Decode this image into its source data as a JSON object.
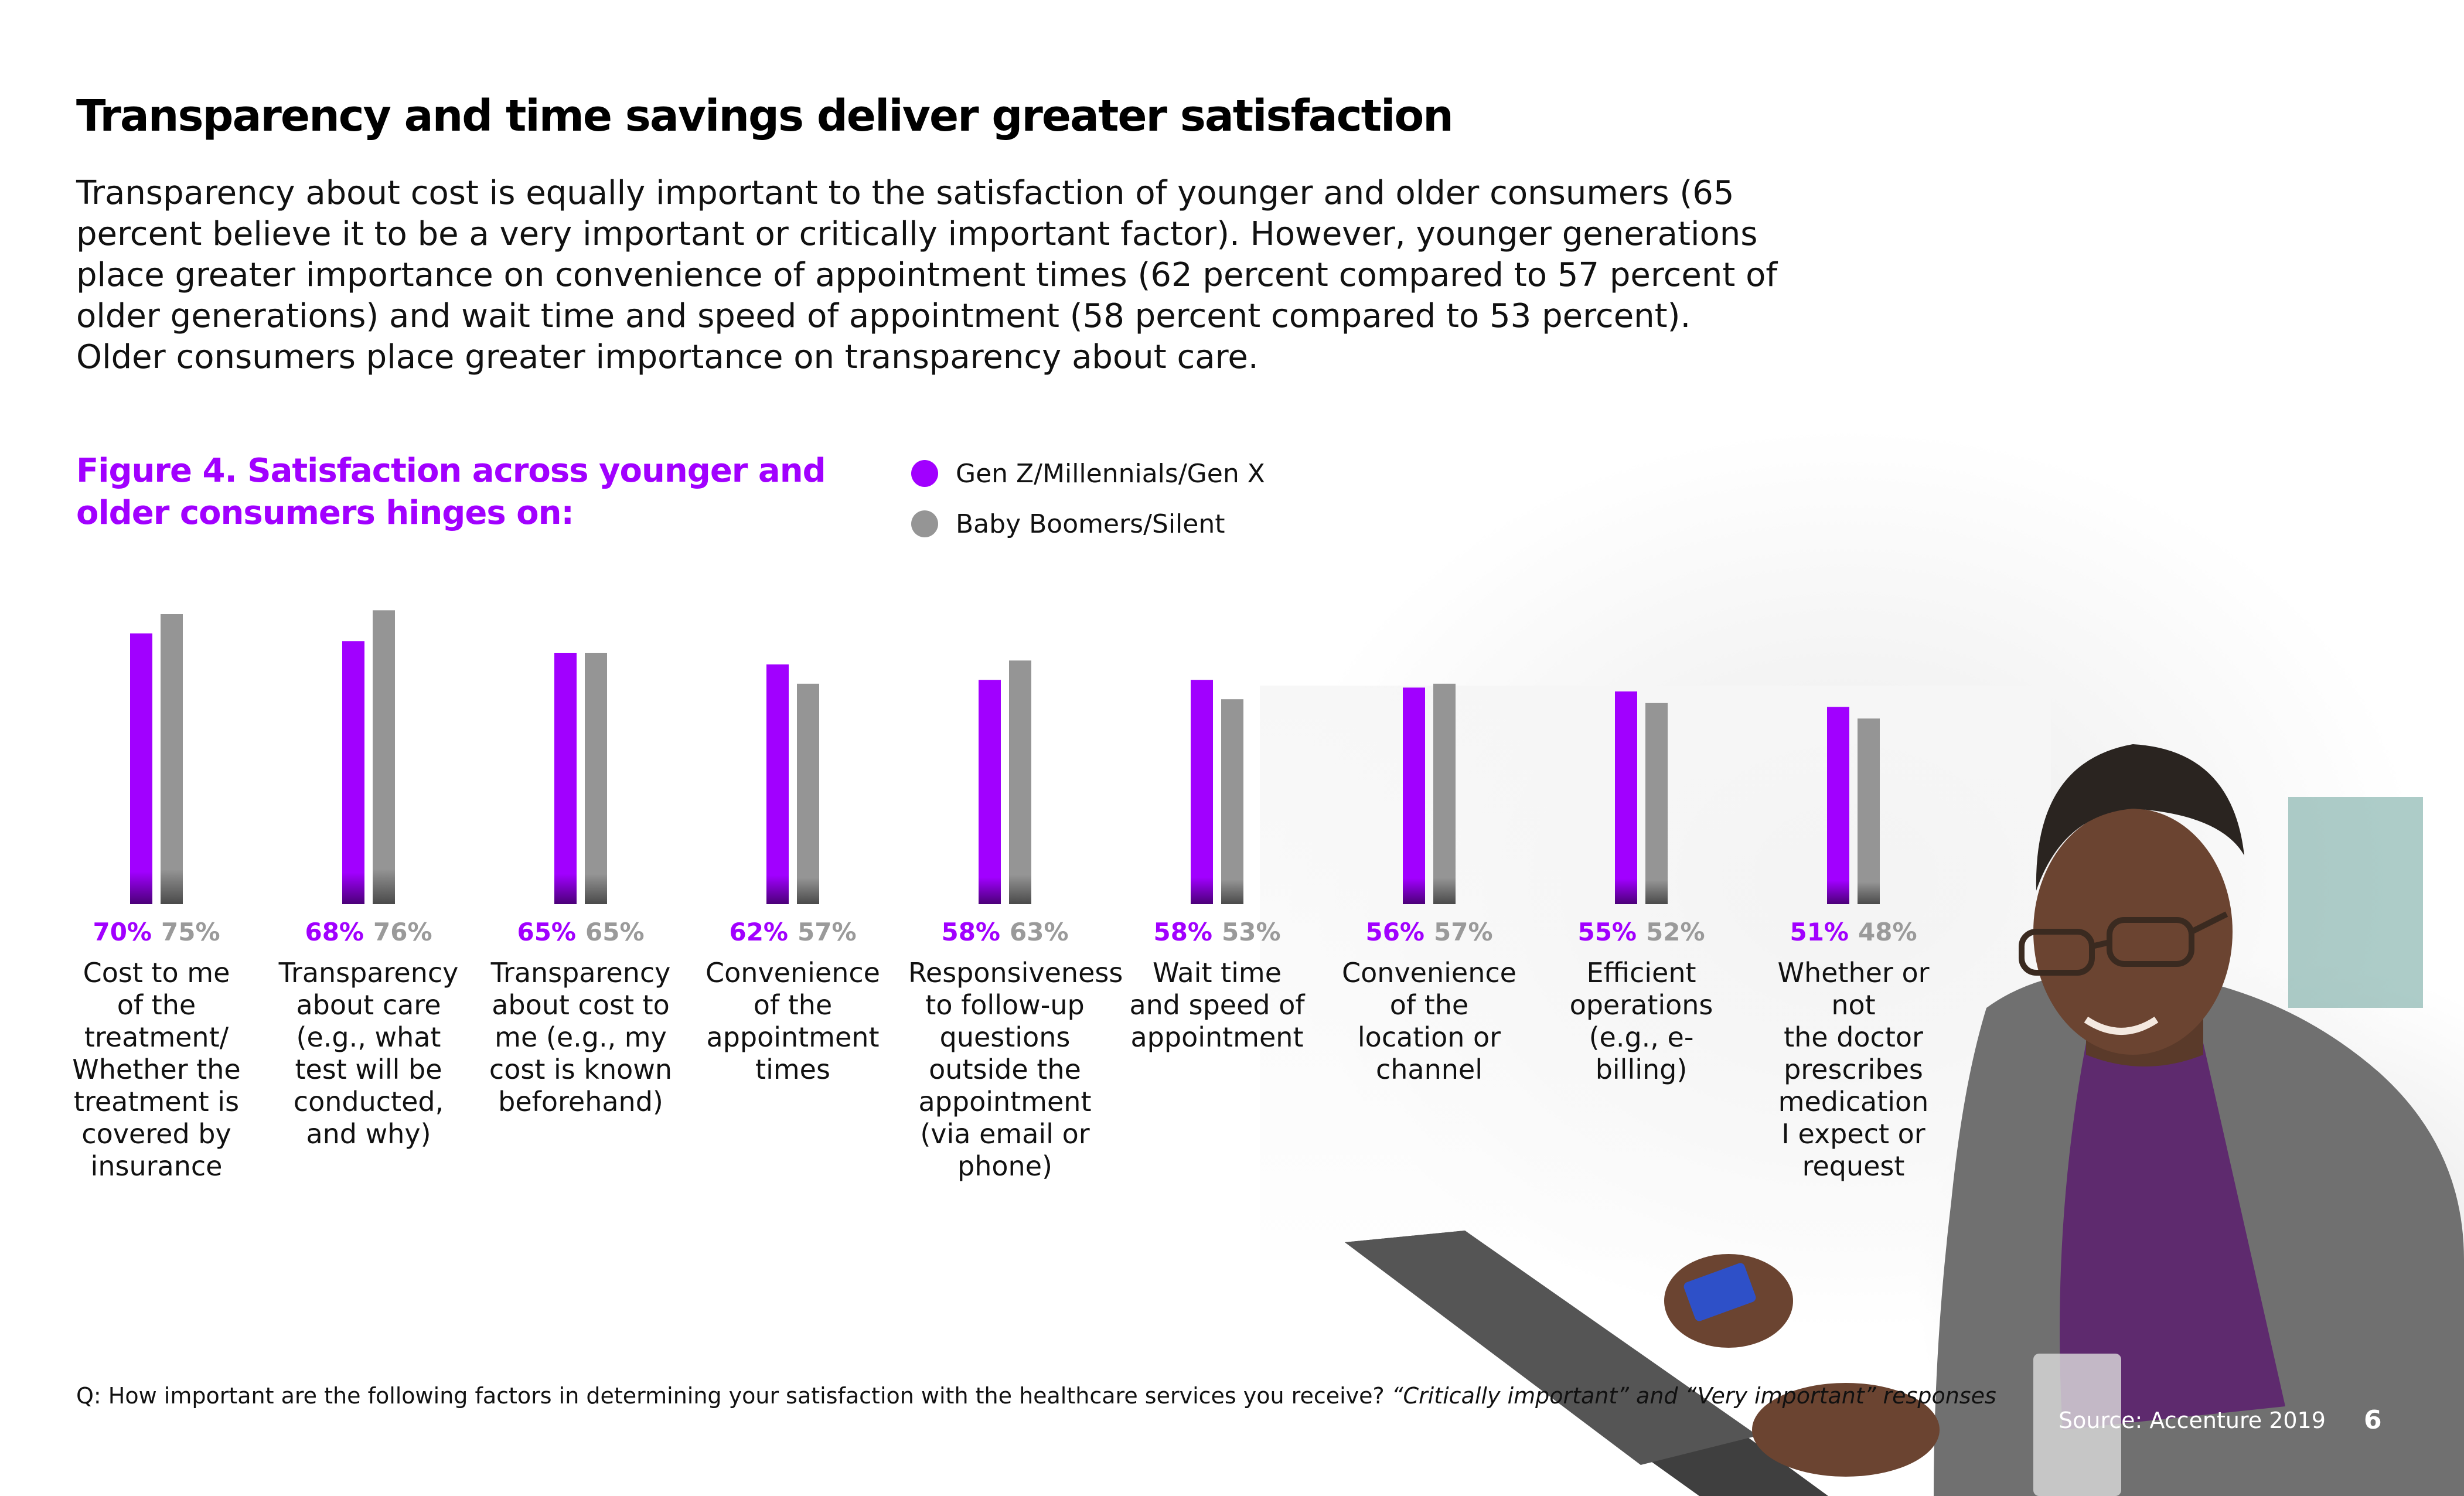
{
  "header": {
    "title": "Transparency and time savings deliver greater satisfaction",
    "intro": "Transparency about cost is equally important to the satisfaction of younger and older consumers (65 percent believe it to be a very important or critically important factor). However, younger generations place greater importance on convenience of appointment times (62 percent compared to 57 percent of older generations) and wait time and speed of appointment (58 percent compared to 53 percent). Older consumers place greater importance on transparency about care."
  },
  "figure": {
    "title": "Figure 4. Satisfaction across younger and older consumers hinges on:"
  },
  "colors": {
    "accent": "#a100ff",
    "younger": "#a100ff",
    "older": "#959595"
  },
  "chart_data": {
    "type": "bar",
    "title": "Figure 4. Satisfaction across younger and older consumers hinges on:",
    "xlabel": "",
    "ylabel": "",
    "ylim": [
      0,
      100
    ],
    "grid": false,
    "legend_position": "top",
    "categories": [
      "Cost to me\nof the\ntreatment/\nWhether the\ntreatment is\ncovered by\ninsurance",
      "Transparency\nabout care\n(e.g., what\ntest will be\nconducted,\nand why)",
      "Transparency\nabout cost to\nme (e.g., my\ncost is known\nbeforehand)",
      "Convenience\nof the\nappointment\ntimes",
      "Responsiveness\nto follow-up\nquestions\noutside the\nappointment\n(via email or\nphone)",
      "Wait time\nand speed of\nappointment",
      "Convenience\nof the\nlocation or\nchannel",
      "Efficient\noperations\n(e.g., e-billing)",
      "Whether or not\nthe doctor\nprescribes\nmedication\nI expect or\nrequest"
    ],
    "series": [
      {
        "name": "Gen Z/Millennials/Gen X",
        "color": "#a100ff",
        "values": [
          70,
          68,
          65,
          62,
          58,
          58,
          56,
          55,
          51
        ],
        "labels": [
          "70%",
          "68%",
          "65%",
          "62%",
          "58%",
          "58%",
          "56%",
          "55%",
          "51%"
        ]
      },
      {
        "name": "Baby Boomers/Silent",
        "color": "#959595",
        "values": [
          75,
          76,
          65,
          57,
          63,
          53,
          57,
          52,
          48
        ],
        "labels": [
          "75%",
          "76%",
          "65%",
          "57%",
          "63%",
          "53%",
          "57%",
          "52%",
          "48%"
        ]
      }
    ]
  },
  "footnote": {
    "question": "Q: How important are the following factors in determining your satisfaction with the healthcare services you receive?",
    "responses": "“Critically important” and “Very important” responses"
  },
  "footer": {
    "source": "Source: Accenture 2019",
    "page_number": "6"
  }
}
